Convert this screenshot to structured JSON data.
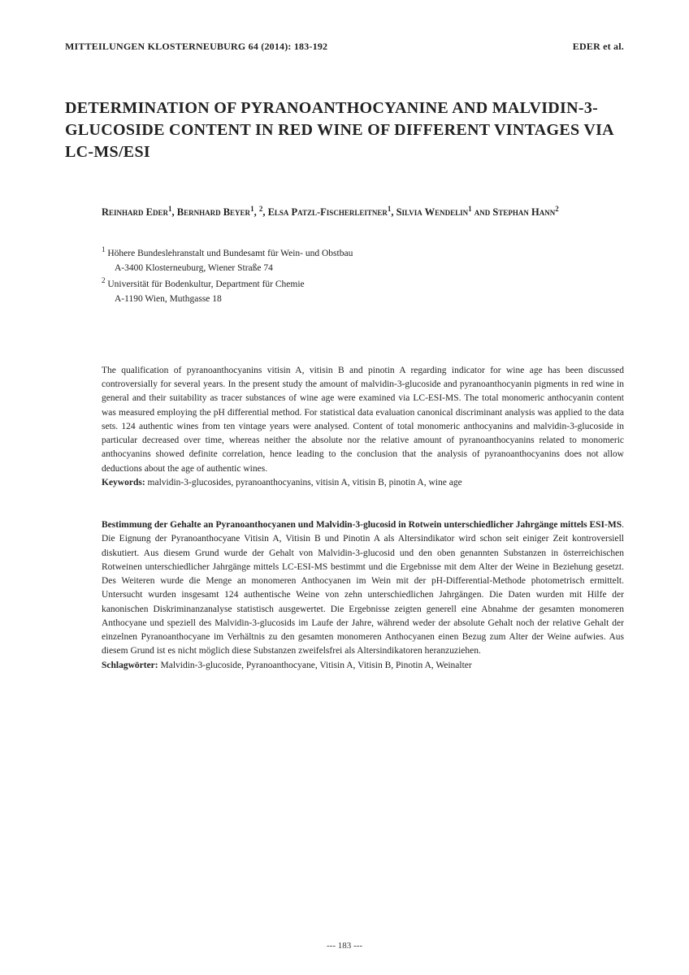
{
  "header": {
    "journal": "MITTEILUNGEN KLOSTERNEUBURG 64 (2014): 183-192",
    "running_author": "EDER et al."
  },
  "title": "DETERMINATION OF PYRANOANTHOCYANINE AND MALVIDIN-3-GLUCOSIDE CONTENT IN RED WINE OF DIFFERENT VINTAGES VIA LC-MS/ESI",
  "authors_html": "Reinhard Eder<span class='sup'>1</span>, Bernhard Beyer<span class='sup'>1</span>, <span class='sup'>2</span>, Elsa Patzl-Fischerleitner<span class='sup'>1</span>, Silvia Wendelin<span class='sup'>1</span> and Stephan Hann<span class='sup'>2</span>",
  "affiliations": {
    "a1_sup": "1",
    "a1_name": " Höhere Bundeslehranstalt und Bundesamt für Wein- und Obstbau",
    "a1_addr": "A-3400 Klosterneuburg, Wiener Straße 74",
    "a2_sup": "2",
    "a2_name": " Universität für Bodenkultur, Department für Chemie",
    "a2_addr": "A-1190 Wien, Muthgasse 18"
  },
  "abstract_en": "The qualification of pyranoanthocyanins vitisin A, vitisin B and pinotin A regarding indicator for wine age has been discussed controversially for several years. In the present study the amount of malvidin-3-glucoside and pyranoanthocyanin pigments in red wine in general and their suitability as tracer substances of wine age were examined via LC-ESI-MS. The total monomeric anthocyanin content was measured employing the pH differential method. For statistical data evaluation canonical discriminant analysis was applied to the data sets. 124 authentic wines from ten vintage years were analysed. Content of total monomeric anthocyanins and malvidin-3-glucoside in particular decreased over time, whereas neither the absolute nor the relative amount of pyranoanthocyanins related to monomeric anthocyanins showed definite correlation, hence leading to the conclusion that the analysis of pyranoanthocyanins does not allow deductions about the age of authentic wines.",
  "keywords_en_label": "Keywords:",
  "keywords_en": " malvidin-3-glucosides, pyranoanthocyanins, vitisin A, vitisin B, pinotin A, wine age",
  "abstract_de_title": "Bestimmung der Gehalte an Pyranoanthocyanen und Malvidin-3-glucosid in Rotwein unterschiedlicher Jahrgänge mittels ESI-MS",
  "abstract_de_body": ". Die Eignung der Pyranoanthocyane Vitisin A, Vitisin B und Pinotin A als Altersindikator wird schon seit einiger Zeit kontroversiell diskutiert. Aus diesem Grund wurde der Gehalt von Malvidin-3-glucosid und den oben genannten Substanzen in österreichischen Rotweinen unterschiedlicher Jahrgänge mittels LC-ESI-MS bestimmt und die Ergebnisse mit dem Alter der Weine in Beziehung gesetzt. Des Weiteren wurde die Menge an monomeren Anthocyanen im Wein mit der pH-Differential-Methode photometrisch ermittelt. Untersucht wurden insgesamt 124 authentische Weine von zehn unterschiedlichen Jahrgängen. Die Daten wurden mit Hilfe der kanonischen Diskriminanzanalyse statistisch ausgewertet. Die Ergebnisse zeigten generell eine Abnahme der gesamten monomeren Anthocyane und speziell des Malvidin-3-glucosids im Laufe der Jahre, während weder der absolute Gehalt noch der relative Gehalt der einzelnen Pyranoanthocyane im Verhältnis zu den gesamten monomeren Anthocyanen einen Bezug zum Alter der Weine aufwies. Aus diesem Grund ist es nicht möglich diese Substanzen zweifelsfrei als Altersindikatoren heranzuziehen.",
  "keywords_de_label": "Schlagwörter:",
  "keywords_de": " Malvidin-3-glucoside, Pyranoanthocyane, Vitisin A, Vitisin B, Pinotin A, Weinalter",
  "footer_page": "---  183  ---"
}
